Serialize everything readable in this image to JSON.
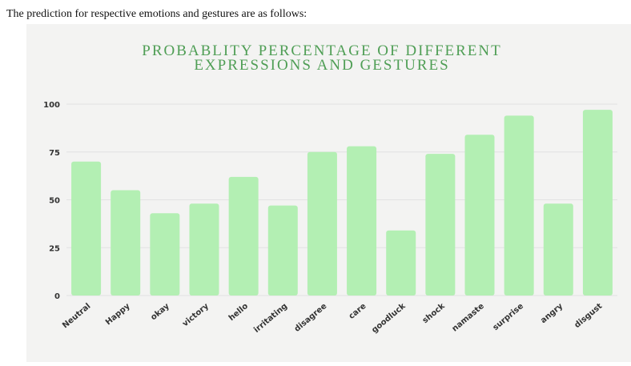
{
  "intro_text": "The prediction for respective emotions and gestures are as follows:",
  "chart_data": {
    "type": "bar",
    "title_line1": "PROBABLITY PERCENTAGE OF DIFFERENT",
    "title_line2": "EXPRESSIONS AND GESTURES",
    "xlabel": "",
    "ylabel": "",
    "ylim": [
      0,
      100
    ],
    "yticks": [
      0,
      25,
      50,
      75,
      100
    ],
    "grid": true,
    "bar_color": "#b3efb3",
    "title_color": "#4f9e55",
    "categories": [
      "Neutral",
      "Happy",
      "okay",
      "victory",
      "hello",
      "irritating",
      "disagree",
      "care",
      "goodluck",
      "shock",
      "namaste",
      "surprise",
      "angry",
      "disgust"
    ],
    "values": [
      70,
      55,
      43,
      48,
      62,
      47,
      75,
      78,
      34,
      74,
      84,
      94,
      48,
      97
    ]
  }
}
